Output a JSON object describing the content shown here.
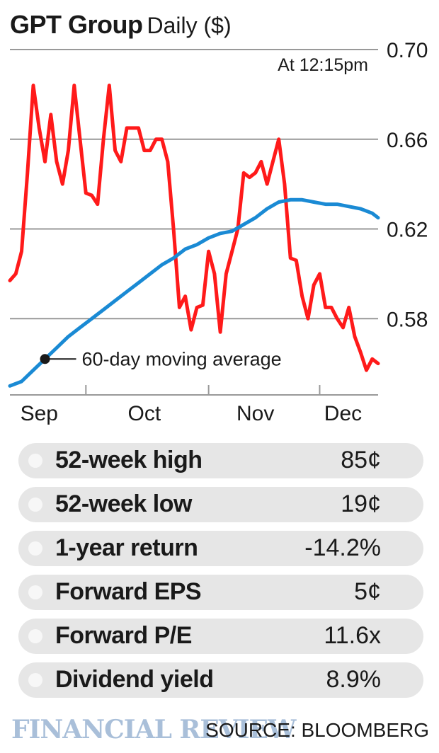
{
  "header": {
    "name": "GPT Group",
    "subtitle": "Daily ($)"
  },
  "chart_data": {
    "type": "line",
    "title": "GPT Group Daily ($)",
    "timestamp": "At 12:15pm",
    "ylim": [
      0.546,
      0.7
    ],
    "yticks": [
      0.7,
      0.66,
      0.62,
      0.58
    ],
    "ytick_labels": [
      "0.70",
      "0.66",
      "0.62",
      "0.58"
    ],
    "xlim": [
      0,
      63
    ],
    "xticks": [
      {
        "x": 5,
        "label": "Sep"
      },
      {
        "x": 23,
        "label": "Oct"
      },
      {
        "x": 42,
        "label": "Nov"
      },
      {
        "x": 57,
        "label": "Dec"
      }
    ],
    "xgrid_ticks": [
      13,
      34,
      53
    ],
    "annotation": {
      "text": "60-day moving average",
      "x": 6,
      "y": 0.562
    },
    "series": [
      {
        "name": "Daily price",
        "color": "#ff1a1a",
        "x": [
          0,
          1,
          2,
          3,
          4,
          5,
          6,
          7,
          8,
          9,
          10,
          11,
          12,
          13,
          14,
          15,
          16,
          17,
          18,
          19,
          20,
          21,
          22,
          23,
          24,
          25,
          26,
          27,
          28,
          29,
          30,
          31,
          32,
          33,
          34,
          35,
          36,
          37,
          38,
          39,
          40,
          41,
          42,
          43,
          44,
          45,
          46,
          47,
          48,
          49,
          50,
          51,
          52,
          53,
          54,
          55,
          56,
          57,
          58,
          59,
          60,
          61,
          62,
          63
        ],
        "values": [
          0.597,
          0.6,
          0.61,
          0.645,
          0.684,
          0.665,
          0.65,
          0.671,
          0.65,
          0.64,
          0.655,
          0.684,
          0.66,
          0.636,
          0.635,
          0.631,
          0.66,
          0.684,
          0.655,
          0.65,
          0.665,
          0.665,
          0.665,
          0.655,
          0.655,
          0.66,
          0.66,
          0.65,
          0.62,
          0.585,
          0.59,
          0.575,
          0.585,
          0.586,
          0.61,
          0.6,
          0.574,
          0.6,
          0.61,
          0.62,
          0.645,
          0.643,
          0.645,
          0.65,
          0.64,
          0.65,
          0.66,
          0.64,
          0.607,
          0.606,
          0.59,
          0.58,
          0.595,
          0.6,
          0.585,
          0.585,
          0.58,
          0.576,
          0.585,
          0.572,
          0.565,
          0.557,
          0.562,
          0.56
        ]
      },
      {
        "name": "60-day moving average",
        "color": "#1a8ad4",
        "x": [
          0,
          2,
          4,
          6,
          8,
          10,
          12,
          14,
          16,
          18,
          20,
          22,
          24,
          26,
          28,
          30,
          32,
          34,
          36,
          38,
          40,
          42,
          44,
          46,
          48,
          50,
          52,
          54,
          56,
          58,
          60,
          62,
          63
        ],
        "values": [
          0.55,
          0.552,
          0.557,
          0.562,
          0.567,
          0.572,
          0.576,
          0.58,
          0.584,
          0.588,
          0.592,
          0.596,
          0.6,
          0.604,
          0.607,
          0.611,
          0.613,
          0.616,
          0.618,
          0.619,
          0.622,
          0.625,
          0.629,
          0.632,
          0.633,
          0.633,
          0.632,
          0.631,
          0.631,
          0.63,
          0.629,
          0.627,
          0.625
        ]
      }
    ]
  },
  "stats": [
    {
      "label": "52-week high",
      "value": "85¢"
    },
    {
      "label": "52-week low",
      "value": "19¢"
    },
    {
      "label": "1-year return",
      "value": "-14.2%"
    },
    {
      "label": "Forward EPS",
      "value": "5¢"
    },
    {
      "label": "Forward P/E",
      "value": "11.6x"
    },
    {
      "label": "Dividend yield",
      "value": "8.9%"
    }
  ],
  "footer": {
    "logo": "FINANCIAL REVIEW",
    "source": "SOURCE: BLOOMBERG"
  },
  "colors": {
    "price": "#ff1a1a",
    "average": "#1a8ad4",
    "grid": "#999999",
    "row_bg": "#e6e6e6",
    "logo": "#a9bfd9"
  }
}
